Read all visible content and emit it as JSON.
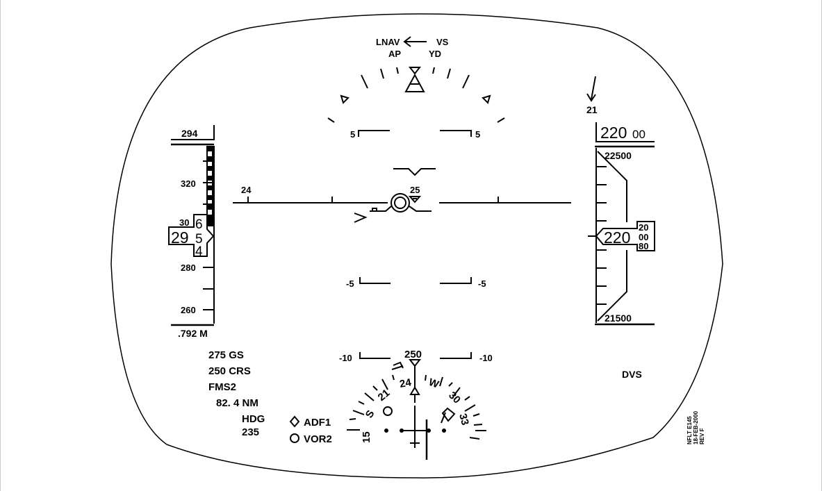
{
  "fma": {
    "lateral": "LNAV",
    "vertical": "VS",
    "autopilot": "AP",
    "yaw_damper": "YD"
  },
  "pitch": {
    "pos5_left": "5",
    "pos5_right": "5",
    "neg5_left": "-5",
    "neg5_right": "-5",
    "neg10_left": "-10",
    "neg10_right": "-10"
  },
  "heading_tape": {
    "left": "24",
    "right": "25"
  },
  "airspeed": {
    "selected": "294",
    "ticks": [
      "320",
      "280",
      "260"
    ],
    "trend_label": "30",
    "current_main": "29",
    "drum_top": "6",
    "drum_mid": "5",
    "drum_bot": "4",
    "mach": ".792 M"
  },
  "altitude": {
    "vs_readout": "21",
    "selected_major": "220",
    "selected_minor": "00",
    "tape_top": "22500",
    "tape_bottom": "21500",
    "current_main": "220",
    "drum_top": "20",
    "drum_mid": "00",
    "drum_bot": "80"
  },
  "nav_info": {
    "ground_speed": "275 GS",
    "course": "250 CRS",
    "source": "FMS2",
    "distance": "82. 4 NM",
    "hdg_label": "HDG",
    "hdg_value": "235"
  },
  "bearing_legend": {
    "adf": "ADF1",
    "vor": "VOR2"
  },
  "compass": {
    "heading_readout": "250",
    "labels": {
      "l15": "15",
      "ls": "S",
      "l21": "21",
      "l24": "24",
      "lw": "W",
      "l30": "30",
      "l33": "33"
    }
  },
  "dvs": "DVS",
  "doc_ref": {
    "line1": "NFLT E145",
    "line2": "18-FEB-2000",
    "line3": "REV F"
  }
}
